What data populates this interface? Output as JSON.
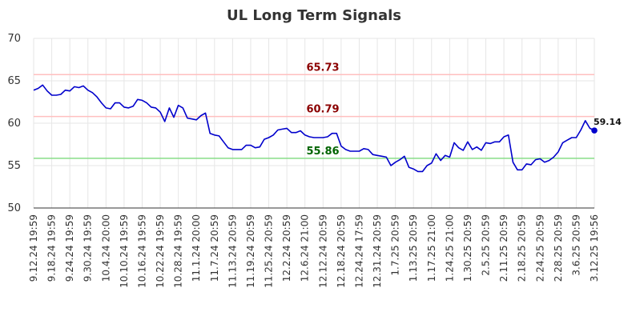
{
  "chart_data": {
    "type": "line",
    "title": "UL Long Term Signals",
    "xlabel": "",
    "ylabel": "",
    "ylim": [
      50,
      70
    ],
    "yticks": [
      50,
      55,
      60,
      65,
      70
    ],
    "grid": true,
    "x_tick_labels": [
      "9.12.24 19:59",
      "9.18.24 19:59",
      "9.24.24 19:59",
      "9.30.24 19:59",
      "10.4.24 20:00",
      "10.10.24 19:59",
      "10.16.24 19:59",
      "10.22.24 19:59",
      "10.28.24 19:59",
      "11.1.24 20:00",
      "11.7.24 20:59",
      "11.13.24 20:59",
      "11.19.24 20:59",
      "11.25.24 20:59",
      "12.2.24 20:59",
      "12.6.24 21:00",
      "12.12.24 20:59",
      "12.18.24 20:59",
      "12.24.24 17:59",
      "12.31.24 20:59",
      "1.7.25 20:59",
      "1.13.25 20:59",
      "1.17.25 21:00",
      "1.24.25 21:00",
      "1.30.25 20:59",
      "2.5.25 20:59",
      "2.11.25 20:59",
      "2.18.25 20:59",
      "2.24.25 20:59",
      "2.28.25 20:59",
      "3.6.25 20:59",
      "3.12.25 19:56"
    ],
    "series": [
      {
        "color": "#0000cc",
        "values": [
          63.9,
          64.1,
          64.5,
          63.8,
          63.3,
          63.3,
          63.4,
          63.9,
          63.8,
          64.3,
          64.2,
          64.4,
          63.9,
          63.6,
          63.1,
          62.4,
          61.8,
          61.7,
          62.4,
          62.4,
          61.9,
          61.8,
          62.0,
          62.8,
          62.7,
          62.4,
          61.9,
          61.8,
          61.3,
          60.2,
          61.8,
          60.7,
          62.1,
          61.8,
          60.6,
          60.5,
          60.4,
          60.9,
          61.2,
          58.8,
          58.6,
          58.5,
          57.8,
          57.1,
          56.9,
          56.9,
          56.9,
          57.4,
          57.4,
          57.1,
          57.2,
          58.1,
          58.3,
          58.6,
          59.2,
          59.3,
          59.4,
          58.9,
          58.9,
          59.1,
          58.6,
          58.4,
          58.3,
          58.3,
          58.3,
          58.4,
          58.8,
          58.8,
          57.3,
          56.9,
          56.7,
          56.7,
          56.7,
          57.0,
          56.9,
          56.3,
          56.2,
          56.1,
          56.0,
          55.0,
          55.4,
          55.7,
          56.1,
          54.8,
          54.6,
          54.3,
          54.3,
          55.0,
          55.3,
          56.4,
          55.6,
          56.2,
          56.0,
          57.7,
          57.1,
          56.8,
          57.8,
          56.9,
          57.2,
          56.8,
          57.7,
          57.6,
          57.8,
          57.8,
          58.4,
          58.6,
          55.4,
          54.5,
          54.5,
          55.2,
          55.1,
          55.7,
          55.8,
          55.4,
          55.6,
          56.0,
          56.6,
          57.7,
          58.0,
          58.3,
          58.3,
          59.2,
          60.3,
          59.4,
          59.14
        ]
      }
    ],
    "reference_lines": [
      {
        "value": 65.73,
        "label": "65.73",
        "line_color": "#ffbfbf",
        "text_color": "#8b0000"
      },
      {
        "value": 60.79,
        "label": "60.79",
        "line_color": "#ffbfbf",
        "text_color": "#8b0000"
      },
      {
        "value": 55.86,
        "label": "55.86",
        "line_color": "#88dd88",
        "text_color": "#006400"
      }
    ],
    "last_value_label": "59.14"
  }
}
